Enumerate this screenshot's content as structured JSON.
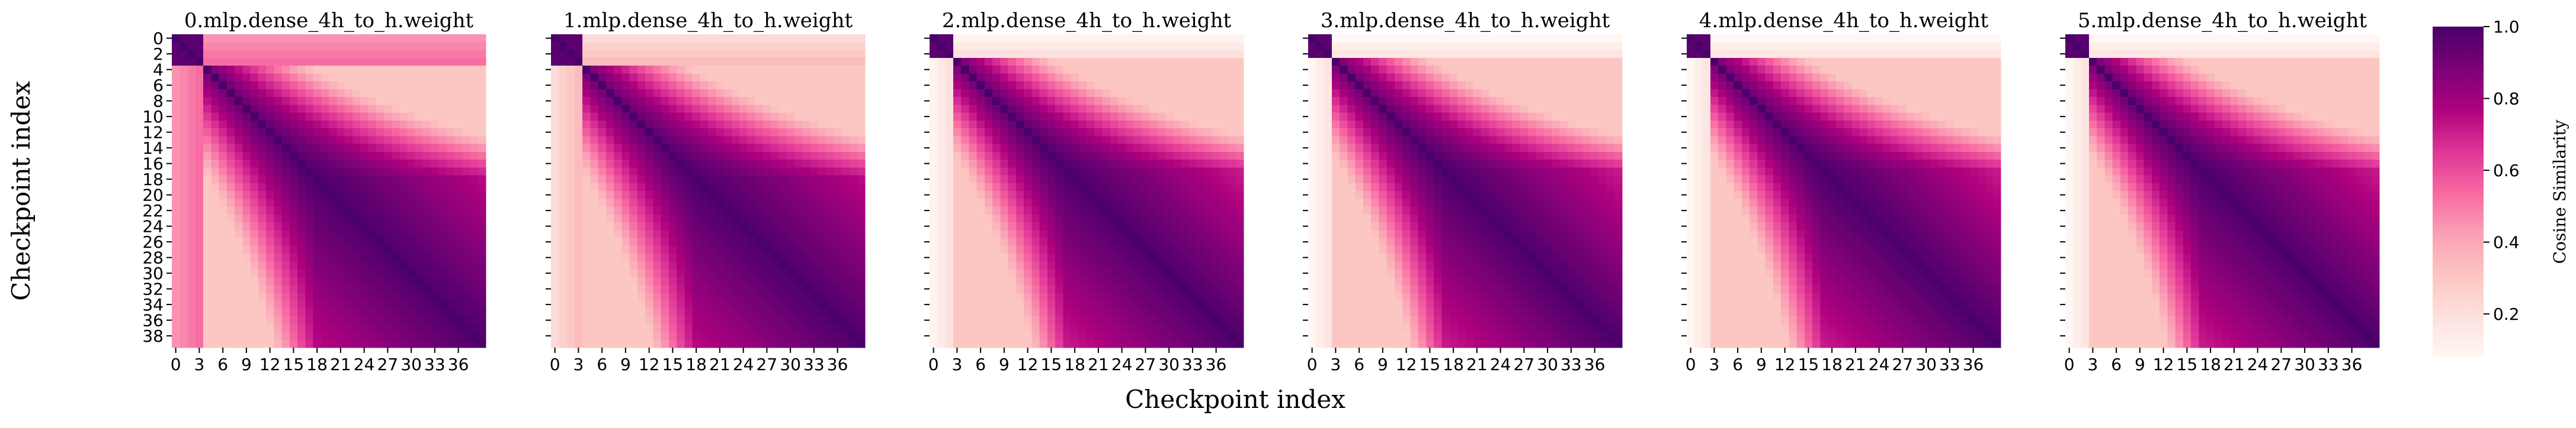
{
  "chart_data": {
    "type": "heatmap",
    "xlabel": "Checkpoint index",
    "ylabel": "Checkpoint index",
    "n_checkpoints": 40,
    "x_tick_labels": [
      "0",
      "3",
      "6",
      "9",
      "12",
      "15",
      "18",
      "21",
      "24",
      "27",
      "30",
      "33",
      "36"
    ],
    "y_tick_labels": [
      "0",
      "2",
      "4",
      "6",
      "8",
      "10",
      "12",
      "14",
      "16",
      "18",
      "20",
      "22",
      "24",
      "26",
      "28",
      "30",
      "32",
      "34",
      "36",
      "38"
    ],
    "colormap": "RdPu",
    "colormap_stops": [
      "#fff7f3",
      "#fde0dd",
      "#fcc5c0",
      "#fa9fb5",
      "#f768a1",
      "#dd3497",
      "#ae017e",
      "#7a0177",
      "#49006a"
    ],
    "colorbar": {
      "label": "Cosine Similarity",
      "range": [
        0.08,
        1.0
      ],
      "tick_values": [
        0.2,
        0.4,
        0.6,
        0.8,
        1.0
      ],
      "tick_labels": [
        "0.2",
        "0.4",
        "0.6",
        "0.8",
        "1.0"
      ]
    },
    "panels": [
      {
        "title": "0.mlp.dense_4h_to_h.weight",
        "early_similarity": 0.45,
        "decay_rate": 0.045,
        "block_size": 4
      },
      {
        "title": "1.mlp.dense_4h_to_h.weight",
        "early_similarity": 0.22,
        "decay_rate": 0.045,
        "block_size": 4
      },
      {
        "title": "2.mlp.dense_4h_to_h.weight",
        "early_similarity": 0.1,
        "decay_rate": 0.05,
        "block_size": 3
      },
      {
        "title": "3.mlp.dense_4h_to_h.weight",
        "early_similarity": 0.08,
        "decay_rate": 0.05,
        "block_size": 3
      },
      {
        "title": "4.mlp.dense_4h_to_h.weight",
        "early_similarity": 0.08,
        "decay_rate": 0.05,
        "block_size": 3
      },
      {
        "title": "5.mlp.dense_4h_to_h.weight",
        "early_similarity": 0.08,
        "decay_rate": 0.05,
        "block_size": 3
      }
    ]
  }
}
